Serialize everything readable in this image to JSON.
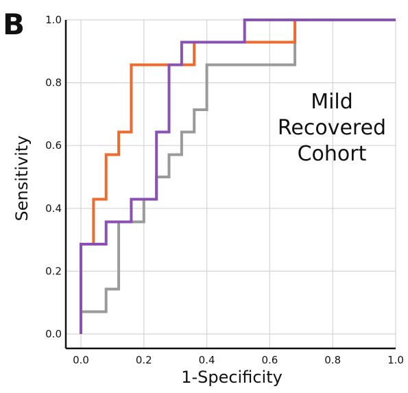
{
  "chart_data": {
    "type": "line",
    "panel_label": "B",
    "xlabel": "1-Specificity",
    "ylabel": "Sensitivity",
    "xlim": [
      0,
      1
    ],
    "ylim": [
      0,
      1
    ],
    "x_ticks": [
      "0.0",
      "0.2",
      "0.4",
      "0.6",
      "0.8",
      "1.0"
    ],
    "y_ticks": [
      "0.0",
      "0.2",
      "0.4",
      "0.6",
      "0.8",
      "1.0"
    ],
    "annotation": [
      "Mild",
      "Recovered",
      "Cohort"
    ],
    "grid": true,
    "series": [
      {
        "color": "#9a9a9a",
        "points": [
          [
            0,
            0
          ],
          [
            0,
            0.071
          ],
          [
            0.08,
            0.071
          ],
          [
            0.08,
            0.143
          ],
          [
            0.12,
            0.143
          ],
          [
            0.12,
            0.357
          ],
          [
            0.2,
            0.357
          ],
          [
            0.2,
            0.429
          ],
          [
            0.24,
            0.429
          ],
          [
            0.24,
            0.5
          ],
          [
            0.28,
            0.5
          ],
          [
            0.28,
            0.571
          ],
          [
            0.32,
            0.571
          ],
          [
            0.32,
            0.643
          ],
          [
            0.36,
            0.643
          ],
          [
            0.36,
            0.714
          ],
          [
            0.4,
            0.714
          ],
          [
            0.4,
            0.857
          ],
          [
            0.68,
            0.857
          ],
          [
            0.68,
            1.0
          ],
          [
            1.0,
            1.0
          ]
        ]
      },
      {
        "color": "#ee6a2e",
        "points": [
          [
            0,
            0
          ],
          [
            0,
            0.286
          ],
          [
            0.04,
            0.286
          ],
          [
            0.04,
            0.429
          ],
          [
            0.08,
            0.429
          ],
          [
            0.08,
            0.571
          ],
          [
            0.12,
            0.571
          ],
          [
            0.12,
            0.643
          ],
          [
            0.16,
            0.643
          ],
          [
            0.16,
            0.857
          ],
          [
            0.36,
            0.857
          ],
          [
            0.36,
            0.929
          ],
          [
            0.68,
            0.929
          ],
          [
            0.68,
            1.0
          ],
          [
            1.0,
            1.0
          ]
        ]
      },
      {
        "color": "#8b50b4",
        "points": [
          [
            0,
            0
          ],
          [
            0,
            0.286
          ],
          [
            0.08,
            0.286
          ],
          [
            0.08,
            0.357
          ],
          [
            0.16,
            0.357
          ],
          [
            0.16,
            0.429
          ],
          [
            0.24,
            0.429
          ],
          [
            0.24,
            0.643
          ],
          [
            0.28,
            0.643
          ],
          [
            0.28,
            0.857
          ],
          [
            0.32,
            0.857
          ],
          [
            0.32,
            0.929
          ],
          [
            0.52,
            0.929
          ],
          [
            0.52,
            1.0
          ],
          [
            1.0,
            1.0
          ]
        ]
      }
    ]
  }
}
